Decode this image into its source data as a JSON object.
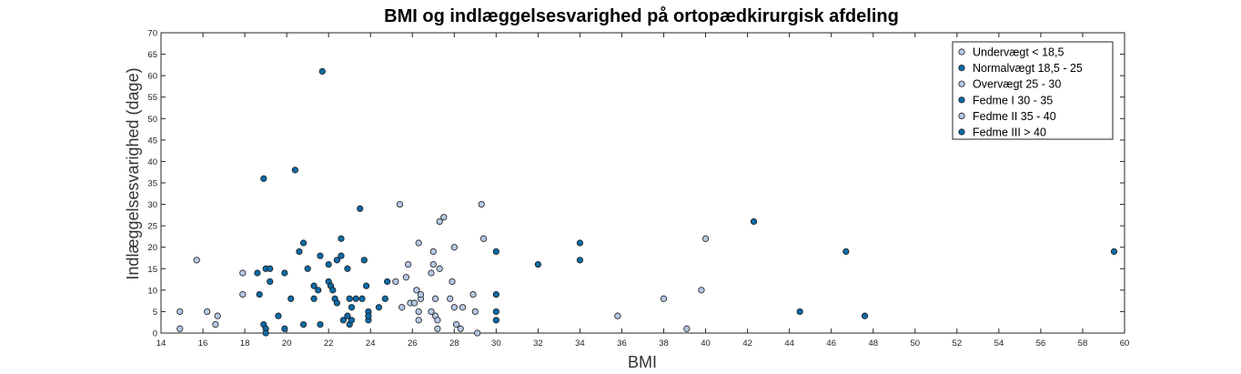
{
  "chart_data": {
    "type": "scatter",
    "title": "BMI og indlæggelsesvarighed på ortopædkirurgisk afdeling",
    "xlabel": "BMI",
    "ylabel": "Indlæggelsesvarighed (dage)",
    "xlim": [
      14,
      60
    ],
    "ylim": [
      0,
      70
    ],
    "xticks": [
      "14",
      "16",
      "18",
      "20",
      "22",
      "24",
      "26",
      "28",
      "30",
      "32",
      "34",
      "36",
      "38",
      "40",
      "42",
      "44",
      "46",
      "48",
      "50",
      "52",
      "54",
      "56",
      "58",
      "60"
    ],
    "yticks": [
      "0",
      "5",
      "10",
      "15",
      "20",
      "25",
      "30",
      "35",
      "40",
      "45",
      "50",
      "55",
      "60",
      "65",
      "70"
    ],
    "grid": false,
    "legend_position": "top-right",
    "colors": {
      "light": "#b4c8e4",
      "dark": "#0e6aa6",
      "edge": "#1c1c1c"
    },
    "series": [
      {
        "name": "Undervægt < 18,5",
        "color": "light",
        "points": [
          [
            14.9,
            5
          ],
          [
            14.9,
            1
          ],
          [
            15.7,
            17
          ],
          [
            16.2,
            5
          ],
          [
            16.6,
            2
          ],
          [
            16.7,
            4
          ],
          [
            17.9,
            14
          ],
          [
            17.9,
            9
          ]
        ]
      },
      {
        "name": "Normalvægt 18,5 - 25",
        "color": "dark",
        "points": [
          [
            18.6,
            14
          ],
          [
            18.7,
            9
          ],
          [
            18.9,
            36
          ],
          [
            18.9,
            2
          ],
          [
            19.0,
            1
          ],
          [
            19.0,
            0
          ],
          [
            19.0,
            15
          ],
          [
            19.2,
            15
          ],
          [
            19.2,
            12
          ],
          [
            19.6,
            4
          ],
          [
            19.9,
            14
          ],
          [
            19.9,
            1
          ],
          [
            20.2,
            8
          ],
          [
            20.4,
            38
          ],
          [
            20.6,
            19
          ],
          [
            20.8,
            21
          ],
          [
            20.8,
            2
          ],
          [
            21.0,
            15
          ],
          [
            21.3,
            11
          ],
          [
            21.3,
            8
          ],
          [
            21.5,
            10
          ],
          [
            21.6,
            18
          ],
          [
            21.6,
            2
          ],
          [
            21.7,
            61
          ],
          [
            22.0,
            16
          ],
          [
            22.0,
            12
          ],
          [
            22.1,
            11
          ],
          [
            22.2,
            10
          ],
          [
            22.3,
            8
          ],
          [
            22.4,
            7
          ],
          [
            22.4,
            17
          ],
          [
            22.6,
            18
          ],
          [
            22.6,
            22
          ],
          [
            22.7,
            3
          ],
          [
            22.9,
            15
          ],
          [
            22.9,
            4
          ],
          [
            23.0,
            8
          ],
          [
            23.0,
            2
          ],
          [
            23.1,
            3
          ],
          [
            23.1,
            6
          ],
          [
            23.3,
            8
          ],
          [
            23.5,
            29
          ],
          [
            23.6,
            8
          ],
          [
            23.7,
            17
          ],
          [
            23.8,
            11
          ],
          [
            23.9,
            5
          ],
          [
            23.9,
            3
          ],
          [
            23.9,
            4
          ],
          [
            24.4,
            6
          ],
          [
            24.7,
            8
          ],
          [
            24.8,
            12
          ]
        ]
      },
      {
        "name": "Overvægt 25 - 30",
        "color": "light",
        "points": [
          [
            25.2,
            12
          ],
          [
            25.4,
            30
          ],
          [
            25.5,
            6
          ],
          [
            25.7,
            13
          ],
          [
            25.8,
            16
          ],
          [
            25.9,
            7
          ],
          [
            26.1,
            7
          ],
          [
            26.2,
            10
          ],
          [
            26.3,
            5
          ],
          [
            26.3,
            3
          ],
          [
            26.3,
            21
          ],
          [
            26.4,
            8
          ],
          [
            26.4,
            9
          ],
          [
            26.9,
            14
          ],
          [
            26.9,
            5
          ],
          [
            27.0,
            16
          ],
          [
            27.0,
            19
          ],
          [
            27.1,
            4
          ],
          [
            27.1,
            8
          ],
          [
            27.2,
            3
          ],
          [
            27.2,
            1
          ],
          [
            27.3,
            26
          ],
          [
            27.3,
            15
          ],
          [
            27.5,
            27
          ],
          [
            27.8,
            8
          ],
          [
            27.9,
            12
          ],
          [
            28.0,
            20
          ],
          [
            28.0,
            6
          ],
          [
            28.1,
            2
          ],
          [
            28.3,
            1
          ],
          [
            28.4,
            6
          ],
          [
            28.9,
            9
          ],
          [
            29.0,
            5
          ],
          [
            29.1,
            0
          ],
          [
            29.3,
            30
          ],
          [
            29.4,
            22
          ]
        ]
      },
      {
        "name": "Fedme I 30 - 35",
        "color": "dark",
        "points": [
          [
            30.0,
            19
          ],
          [
            30.0,
            9
          ],
          [
            30.0,
            5
          ],
          [
            30.0,
            3
          ],
          [
            32.0,
            16
          ],
          [
            34.0,
            21
          ],
          [
            34.0,
            17
          ]
        ]
      },
      {
        "name": "Fedme II 35 - 40",
        "color": "light",
        "points": [
          [
            35.8,
            4
          ],
          [
            38.0,
            8
          ],
          [
            39.1,
            1
          ],
          [
            39.8,
            10
          ],
          [
            40.0,
            22
          ]
        ]
      },
      {
        "name": "Fedme III > 40",
        "color": "dark",
        "points": [
          [
            42.3,
            26
          ],
          [
            44.5,
            5
          ],
          [
            46.7,
            19
          ],
          [
            47.6,
            4
          ],
          [
            59.5,
            19
          ]
        ]
      }
    ]
  }
}
